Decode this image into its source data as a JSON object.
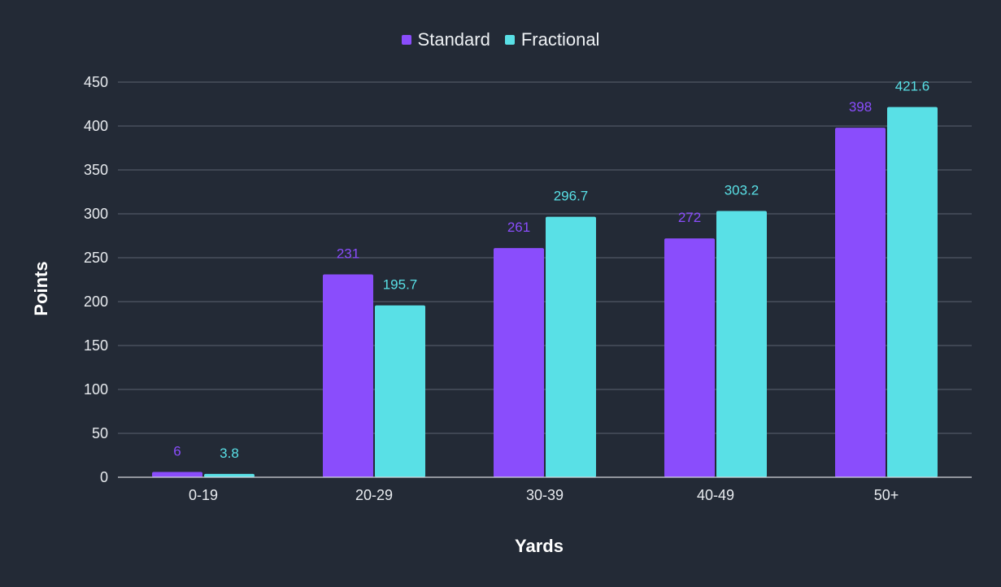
{
  "chart_data": {
    "type": "bar",
    "title": "",
    "xlabel": "Yards",
    "ylabel": "Points",
    "categories": [
      "0-19",
      "20-29",
      "30-39",
      "40-49",
      "50+"
    ],
    "series": [
      {
        "name": "Standard",
        "color": "#8a4dfc",
        "values": [
          6,
          231,
          261,
          272,
          398
        ],
        "labels": [
          "6",
          "231",
          "261",
          "272",
          "398"
        ]
      },
      {
        "name": "Fractional",
        "color": "#59e0e6",
        "values": [
          3.8,
          195.7,
          296.7,
          303.2,
          421.6
        ],
        "labels": [
          "3.8",
          "195.7",
          "296.7",
          "303.2",
          "421.6"
        ]
      }
    ],
    "ylim": [
      0,
      450
    ],
    "yticks": [
      0,
      50,
      100,
      150,
      200,
      250,
      300,
      350,
      400,
      450
    ],
    "grid": true,
    "legend_position": "top-center"
  }
}
